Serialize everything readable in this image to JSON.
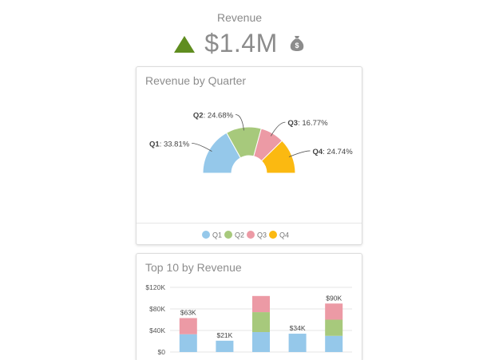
{
  "kpi": {
    "label": "Revenue",
    "value": "$1.4M",
    "trend": "up",
    "trend_color": "#5f8d1f",
    "icon": "money-bag-icon"
  },
  "quarter_card": {
    "title": "Revenue by Quarter"
  },
  "top10_card": {
    "title": "Top 10 by Revenue"
  },
  "chart_data": [
    {
      "type": "pie",
      "variant": "half-donut",
      "title": "Revenue by Quarter",
      "categories": [
        "Q1",
        "Q2",
        "Q3",
        "Q4"
      ],
      "values": [
        33.81,
        24.68,
        16.77,
        24.74
      ],
      "labels": [
        "33.81%",
        "24.68%",
        "16.77%",
        "24.74%"
      ],
      "colors": [
        "#95c8ea",
        "#a7c97c",
        "#ec9aa5",
        "#fbb911"
      ],
      "legend": "bottom"
    },
    {
      "type": "bar",
      "stacked": true,
      "title": "Top 10 by Revenue",
      "y_ticks": [
        "$0",
        "$40K",
        "$80K",
        "$120K"
      ],
      "ylim": [
        0,
        120000
      ],
      "categories": [
        "",
        "",
        "",
        "",
        ""
      ],
      "series": [
        {
          "values": [
            33000,
            21000,
            37000,
            34000,
            30000
          ],
          "color": "#95c8ea"
        },
        {
          "values": [
            0,
            0,
            37000,
            0,
            30000
          ],
          "color": "#a7c97c"
        },
        {
          "values": [
            30000,
            0,
            30000,
            0,
            30000
          ],
          "color": "#ec9aa5"
        }
      ],
      "data_labels": [
        "$63K",
        "$21K",
        "",
        "$34K",
        "$90K"
      ],
      "grid": true
    }
  ]
}
